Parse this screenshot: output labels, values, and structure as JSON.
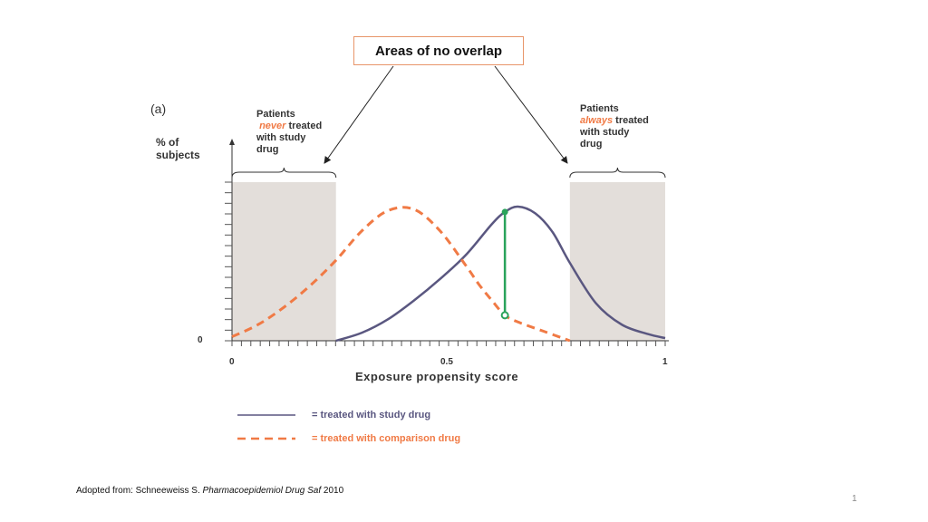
{
  "callout": "Areas of no overlap",
  "panel_label": "(a)",
  "annotations": {
    "left": {
      "line1": "Patients",
      "highlight": "never",
      "rest1": " treated",
      "line3": "with study",
      "line4": "drug"
    },
    "right": {
      "line1": "Patients",
      "highlight": "always",
      "rest1": " treated",
      "line3": "with study",
      "line4": "drug"
    }
  },
  "citation": {
    "prefix": "Adopted from: Schneeweiss S. ",
    "journal": "Pharmacoepidemiol Drug Saf",
    "suffix": " 2010"
  },
  "page_number": "1",
  "colors": {
    "treated": "#5a5780",
    "comparison": "#f07a45",
    "difference": "#2aa35b",
    "shade": "#d9d3ce",
    "callout_border": "#e8956a"
  },
  "chart_data": {
    "type": "line",
    "xlabel": "Exposure propensity score",
    "ylabel_line1": "% of",
    "ylabel_line2": "subjects",
    "x_ticks": [
      "0",
      "0.5",
      "1"
    ],
    "y_ticks": [
      "0"
    ],
    "xlim": [
      0,
      1
    ],
    "no_overlap_regions": [
      [
        0,
        0.24
      ],
      [
        0.78,
        1
      ]
    ],
    "difference_marker_x": 0.63,
    "series": [
      {
        "name": "= treated with study drug",
        "style": "solid",
        "x": [
          0.24,
          0.3,
          0.36,
          0.42,
          0.48,
          0.54,
          0.6,
          0.63,
          0.66,
          0.7,
          0.74,
          0.78,
          0.84,
          0.9,
          0.96,
          1.0
        ],
        "y": [
          0.0,
          0.06,
          0.16,
          0.3,
          0.46,
          0.64,
          0.87,
          0.96,
          1.0,
          0.95,
          0.81,
          0.58,
          0.28,
          0.12,
          0.05,
          0.02
        ]
      },
      {
        "name": "= treated with comparison drug",
        "style": "dashed",
        "x": [
          0.0,
          0.06,
          0.12,
          0.18,
          0.24,
          0.3,
          0.36,
          0.42,
          0.48,
          0.54,
          0.57,
          0.6,
          0.63,
          0.66,
          0.72,
          0.78
        ],
        "y": [
          0.03,
          0.12,
          0.25,
          0.41,
          0.6,
          0.82,
          0.97,
          0.98,
          0.82,
          0.56,
          0.42,
          0.3,
          0.19,
          0.14,
          0.07,
          0.0
        ]
      }
    ]
  }
}
